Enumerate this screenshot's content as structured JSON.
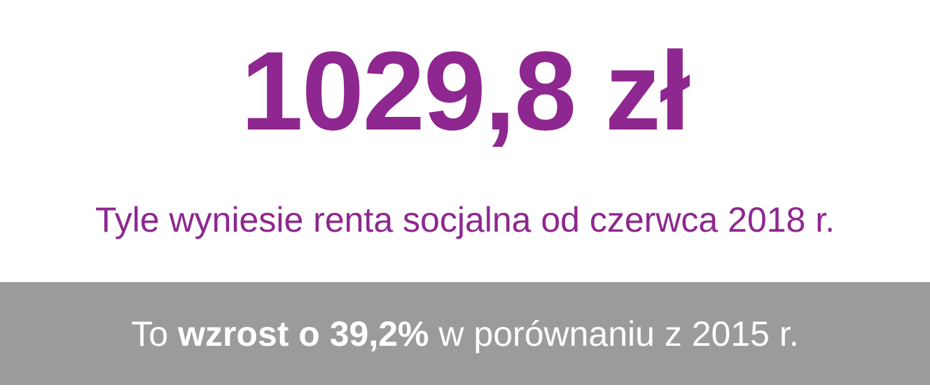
{
  "headline": "1029,8 zł",
  "subtitle": "Tyle wyniesie renta socjalna od czerwca 2018 r.",
  "banner": {
    "lead": "To",
    "highlight": "wzrost o 39,2%",
    "tail": "w porównaniu z 2015 r."
  }
}
